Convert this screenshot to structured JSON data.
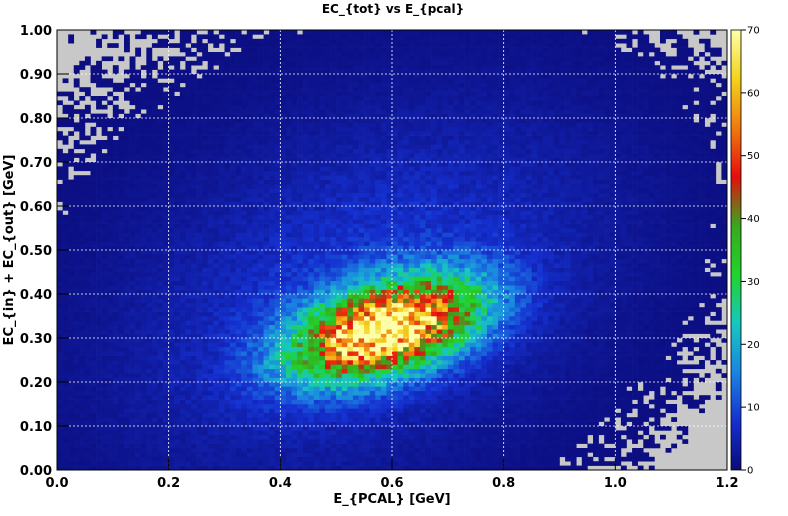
{
  "chart_data": {
    "type": "heatmap",
    "title": "EC_{tot} vs E_{pcal}",
    "xlabel": "E_{PCAL} [GeV]",
    "ylabel": "EC_{in} + EC_{out} [GeV]",
    "xlim": [
      0.0,
      1.2
    ],
    "ylim": [
      0.0,
      1.0
    ],
    "x_ticks": [
      "0.0",
      "0.2",
      "0.4",
      "0.6",
      "0.8",
      "1.0",
      "1.2"
    ],
    "y_ticks": [
      "0.00",
      "0.10",
      "0.20",
      "0.30",
      "0.40",
      "0.50",
      "0.60",
      "0.70",
      "0.80",
      "0.90",
      "1.00"
    ],
    "colorbar": {
      "range": [
        0,
        70
      ],
      "ticks": [
        "0",
        "10",
        "20",
        "30",
        "40",
        "50",
        "60",
        "70"
      ],
      "palette": [
        "#0b0b7a",
        "#1530d0",
        "#1b84e2",
        "#17c7c0",
        "#21d42b",
        "#38a81e",
        "#e60d0d",
        "#f07a10",
        "#f3d21a",
        "#ffffa8"
      ]
    },
    "grid": true,
    "empty_bin_color": "#c8c8c8",
    "bins": {
      "nx": 120,
      "ny": 100
    },
    "density_model": {
      "peak": {
        "x": 0.59,
        "y": 0.32,
        "counts": 70
      },
      "correlation": "positive",
      "description_values": {
        "core_sigma_x": 0.11,
        "core_sigma_y": 0.075
      }
    }
  }
}
